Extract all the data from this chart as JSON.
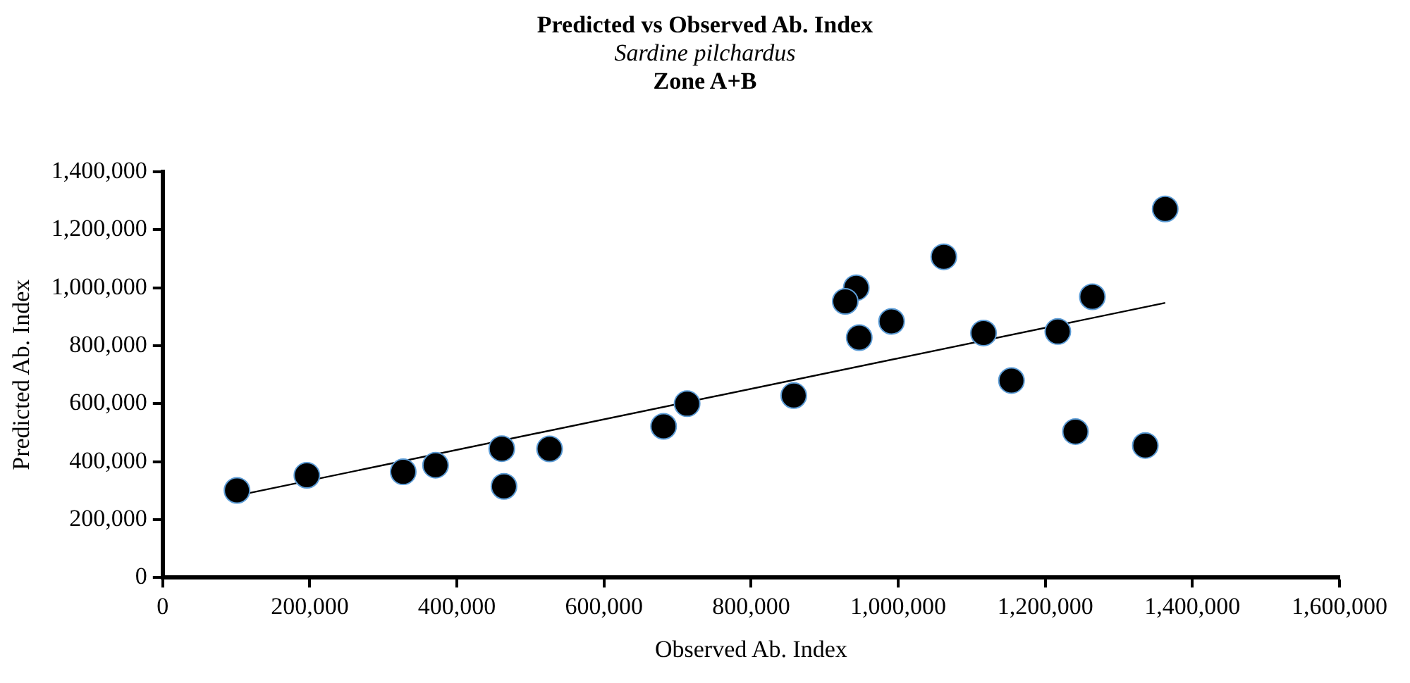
{
  "chart_data": {
    "type": "scatter",
    "title": "Predicted vs Observed Ab. Index",
    "subtitle": "Sardine pilchardus",
    "annotations": [
      "Zone A+B"
    ],
    "xlabel": "Observed Ab. Index",
    "ylabel": "Predicted Ab. Index",
    "xlim": [
      0,
      1600000
    ],
    "xticks": [
      0,
      {
        "value": 200000,
        "label": "200,000"
      },
      {
        "value": 400000,
        "label": "400,000"
      },
      {
        "value": 600000,
        "label": "600,000"
      },
      {
        "value": 800000,
        "label": "800,000"
      },
      {
        "value": 1000000,
        "label": "1,000,000"
      },
      {
        "value": 1200000,
        "label": "1,200,000"
      },
      {
        "value": 1400000,
        "label": "1,400,000"
      },
      {
        "value": 1600000,
        "label": "1,600,000"
      }
    ],
    "ylim": [
      0,
      1400000
    ],
    "yticks": [
      0,
      {
        "value": 200000,
        "label": "200,000"
      },
      {
        "value": 400000,
        "label": "400,000"
      },
      {
        "value": 600000,
        "label": "600,000"
      },
      {
        "value": 800000,
        "label": "800,000"
      },
      {
        "value": 1000000,
        "label": "1,000,000"
      },
      {
        "value": 1200000,
        "label": "1,200,000"
      },
      {
        "value": 1400000,
        "label": "1,400,000"
      }
    ],
    "grid": false,
    "legend": false,
    "marker": "circle",
    "series": [
      {
        "color": "#000000",
        "x": [
          101000,
          196000,
          327000,
          371000,
          461000,
          464000,
          526000,
          681000,
          713000,
          858000,
          943000,
          928000,
          947000,
          991000,
          1062000,
          1116000,
          1154000,
          1217000,
          1264000,
          1241000,
          1336000,
          1363000
        ],
        "values": [
          301000,
          353000,
          365000,
          388000,
          445000,
          315000,
          444000,
          522000,
          600000,
          628000,
          1000000,
          953000,
          828000,
          884000,
          1107000,
          844000,
          680000,
          849000,
          969000,
          504000,
          456000,
          1272000
        ]
      },
      {
        "type": "line",
        "color": "#000000",
        "marker": "none",
        "line_style": "solid",
        "x": [
          110000,
          1363000
        ],
        "values": [
          288000,
          948000
        ]
      }
    ]
  }
}
